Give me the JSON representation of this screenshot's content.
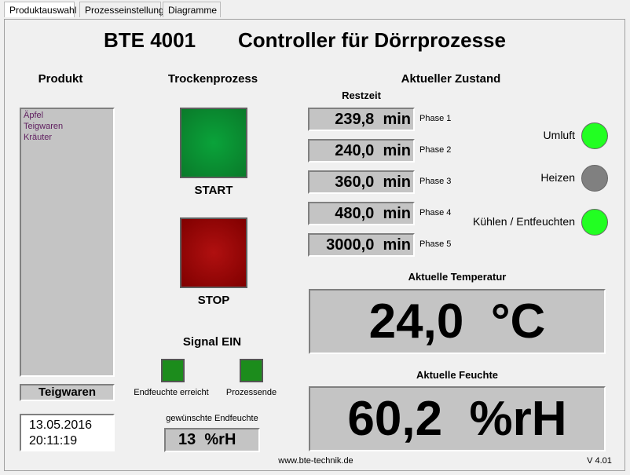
{
  "tabs": [
    "Produktauswahl",
    "Prozesseinstellung",
    "Diagramme"
  ],
  "header": {
    "title": "BTE 4001",
    "subtitle": "Controller für Dörrprozesse"
  },
  "product": {
    "heading": "Produkt",
    "items": [
      "Äpfel",
      "Teigwaren",
      "Kräuter"
    ],
    "selected": "Teigwaren",
    "date": "13.05.2016",
    "time": "20:11:19"
  },
  "process": {
    "heading": "Trockenprozess",
    "start": "START",
    "stop": "STOP",
    "signal_heading": "Signal EIN",
    "signals": [
      "Endfeuchte erreicht",
      "Prozessende"
    ],
    "target_label": "gewünschte Endfeuchte",
    "target_value": "13",
    "target_unit": "%rH"
  },
  "state": {
    "heading": "Aktueller Zustand",
    "remaining_label": "Restzeit",
    "phases": [
      {
        "value": "239,8",
        "unit": "min",
        "label": "Phase 1"
      },
      {
        "value": "240,0",
        "unit": "min",
        "label": "Phase 2"
      },
      {
        "value": "360,0",
        "unit": "min",
        "label": "Phase 3"
      },
      {
        "value": "480,0",
        "unit": "min",
        "label": "Phase 4"
      },
      {
        "value": "3000,0",
        "unit": "min",
        "label": "Phase 5"
      }
    ],
    "indicators": [
      {
        "label": "Umluft",
        "on": true
      },
      {
        "label": "Heizen",
        "on": false
      },
      {
        "label": "Kühlen / Entfeuchten",
        "on": true
      }
    ]
  },
  "temperature": {
    "label": "Aktuelle Temperatur",
    "value": "24,0",
    "unit": "°C"
  },
  "humidity": {
    "label": "Aktuelle Feuchte",
    "value": "60,2",
    "unit": "%rH"
  },
  "footer": {
    "url": "www.bte-technik.de",
    "version": "V 4.01"
  }
}
